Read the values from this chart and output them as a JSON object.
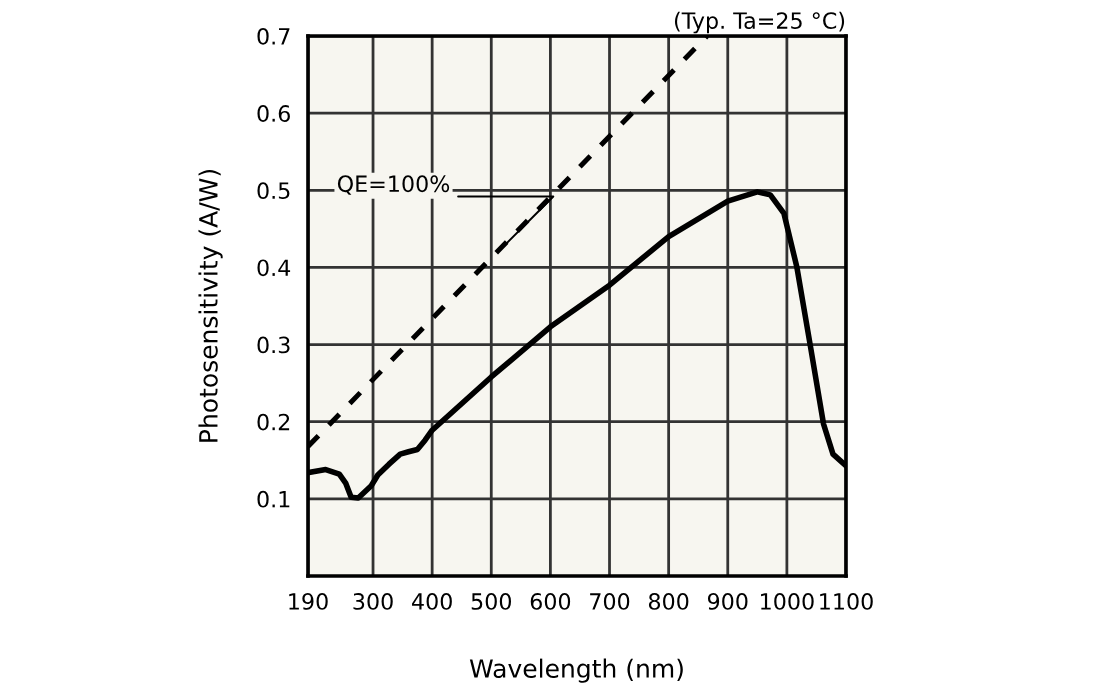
{
  "chart_data": {
    "type": "line",
    "xlabel": "Wavelength (nm)",
    "ylabel": "Photosensitivity (A/W)",
    "xlim": [
      190,
      1100
    ],
    "xticks": [
      190,
      300,
      400,
      500,
      600,
      700,
      800,
      900,
      1000,
      1100
    ],
    "ylim": [
      0,
      0.7
    ],
    "yticks": [
      0.1,
      0.2,
      0.3,
      0.4,
      0.5,
      0.6,
      0.7
    ],
    "grid": true,
    "legend": false,
    "series": [
      {
        "color": "#000000",
        "line_style": "solid",
        "x": [
          190,
          220,
          243,
          254,
          263,
          275,
          297,
          308,
          327,
          346,
          360,
          375,
          388,
          400,
          500,
          600,
          700,
          800,
          900,
          950,
          972,
          995,
          1017,
          1040,
          1062,
          1078,
          1100
        ],
        "values": [
          0.134,
          0.138,
          0.132,
          0.12,
          0.102,
          0.101,
          0.117,
          0.131,
          0.145,
          0.158,
          0.161,
          0.164,
          0.176,
          0.189,
          0.258,
          0.323,
          0.377,
          0.44,
          0.486,
          0.498,
          0.494,
          0.47,
          0.4,
          0.297,
          0.197,
          0.158,
          0.143
        ]
      },
      {
        "color": "#000000",
        "line_style": "dashed",
        "x": [
          190,
          865
        ],
        "values": [
          0.168,
          0.7
        ]
      }
    ],
    "annotations": [
      "(Typ. Ta=25 °C)",
      {
        "text": "QE=100%",
        "x": 511,
        "y": 0.42
      }
    ]
  }
}
